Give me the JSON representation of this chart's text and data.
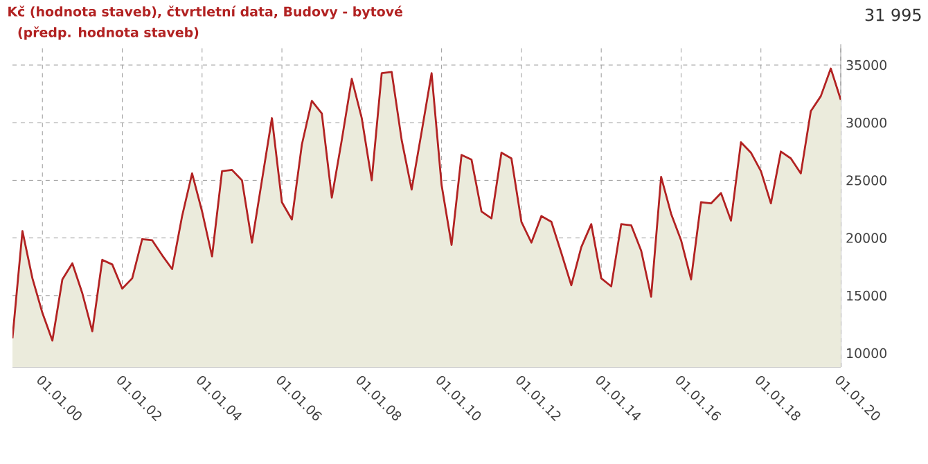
{
  "chart_data": {
    "type": "area",
    "title": "Kč (hodnota staveb), čtvrtletní data, Budovy - bytové",
    "subtitle": " (předp. hodnota staveb)",
    "x": [
      "1999-04",
      "1999-07",
      "1999-10",
      "2000-01",
      "2000-04",
      "2000-07",
      "2000-10",
      "2001-01",
      "2001-04",
      "2001-07",
      "2001-10",
      "2002-01",
      "2002-04",
      "2002-07",
      "2002-10",
      "2003-01",
      "2003-04",
      "2003-07",
      "2003-10",
      "2004-01",
      "2004-04",
      "2004-07",
      "2004-10",
      "2005-01",
      "2005-04",
      "2005-07",
      "2005-10",
      "2006-01",
      "2006-04",
      "2006-07",
      "2006-10",
      "2007-01",
      "2007-04",
      "2007-07",
      "2007-10",
      "2008-01",
      "2008-04",
      "2008-07",
      "2008-10",
      "2009-01",
      "2009-04",
      "2009-07",
      "2009-10",
      "2010-01",
      "2010-04",
      "2010-07",
      "2010-10",
      "2011-01",
      "2011-04",
      "2011-07",
      "2011-10",
      "2012-01",
      "2012-04",
      "2012-07",
      "2012-10",
      "2013-01",
      "2013-04",
      "2013-07",
      "2013-10",
      "2014-01",
      "2014-04",
      "2014-07",
      "2014-10",
      "2015-01",
      "2015-04",
      "2015-07",
      "2015-10",
      "2016-01",
      "2016-04",
      "2016-07",
      "2016-10",
      "2017-01",
      "2017-04",
      "2017-07",
      "2017-10",
      "2018-01",
      "2018-04",
      "2018-07",
      "2018-10",
      "2019-01",
      "2019-04",
      "2019-07",
      "2019-10",
      "2020-01"
    ],
    "series": [
      {
        "color": "#b22222",
        "values": [
          11300,
          20600,
          16500,
          13500,
          11100,
          16400,
          17800,
          15200,
          11900,
          18100,
          17700,
          15600,
          16500,
          19900,
          19800,
          18500,
          17300,
          21900,
          25600,
          22300,
          18400,
          25800,
          25900,
          25000,
          19600,
          25000,
          30400,
          23100,
          21600,
          28100,
          31900,
          30800,
          23500,
          28500,
          33800,
          30400,
          25000,
          34300,
          34400,
          28500,
          24200,
          29200,
          34300,
          24600,
          19400,
          27200,
          26800,
          22300,
          21700,
          27400,
          26900,
          21400,
          19600,
          21900,
          21400,
          18700,
          15900,
          19200,
          21200,
          16500,
          15800,
          21200,
          21100,
          18900,
          14900,
          25300,
          22100,
          19800,
          16400,
          23100,
          23000,
          23900,
          21500,
          28300,
          27400,
          25800,
          23000,
          27500,
          26900,
          25600,
          31000,
          32300,
          34700,
          31995
        ]
      }
    ],
    "annotations": [
      "31 995"
    ],
    "xlim": [
      "1999-04",
      "2020-01"
    ],
    "xticks": [
      {
        "value": "2000-01",
        "label": "01.01.00"
      },
      {
        "value": "2002-01",
        "label": "01.01.02"
      },
      {
        "value": "2004-01",
        "label": "01.01.04"
      },
      {
        "value": "2006-01",
        "label": "01.01.06"
      },
      {
        "value": "2008-01",
        "label": "01.01.08"
      },
      {
        "value": "2010-01",
        "label": "01.01.10"
      },
      {
        "value": "2012-01",
        "label": "01.01.12"
      },
      {
        "value": "2014-01",
        "label": "01.01.14"
      },
      {
        "value": "2016-01",
        "label": "01.01.16"
      },
      {
        "value": "2018-01",
        "label": "01.01.18"
      },
      {
        "value": "2020-01",
        "label": "01.01.20"
      }
    ],
    "ylim": [
      8800,
      36800
    ],
    "yticks": [
      10000,
      15000,
      20000,
      25000,
      30000,
      35000
    ],
    "grid": true
  }
}
